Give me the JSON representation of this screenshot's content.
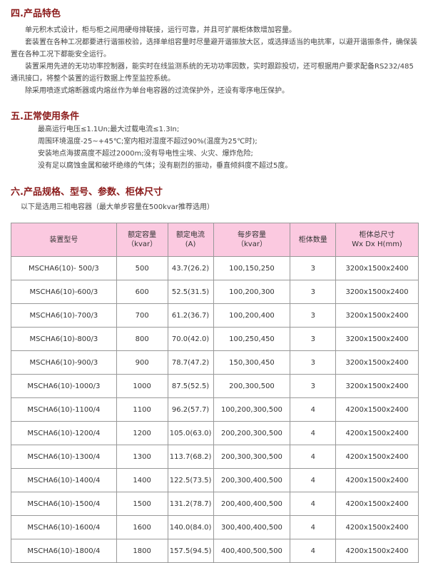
{
  "section4": {
    "title": "四.产品特色",
    "paragraphs": [
      "单元积木式设计，柜与柜之间用硬母排联接，运行可靠，并且可扩展柜体数增加容量。",
      "套装置在各种工况都要进行谐振校验，选择单组容量时尽量避开谐振放大区，或选择适当的电抗率，以避开谐振条件，确保装置在各种工况下都能安全运行。",
      "装置采用先进的无功功率控制器，能实时在线监测系统的无功功率因数，实时跟踪投切，还可根据用户要求配备RS232/485 通讯接口，将整个装置的运行数据上传至监控系统。",
      "除采用喷逐式熔断器或内熔丝作为单台电容器的过流保护外，还设有零序电压保护。"
    ]
  },
  "section5": {
    "title": "五.正常使用条件",
    "lines": [
      "最高运行电压≤1.1Un;最大过载电流≤1.3In;",
      "周围环境温度-25~+45℃;室内相对湿度不超过90%(温度为25℃时);",
      "安装地点海拔高度不超过2000m;没有导电性尘埃、火灾、爆炸危险;",
      "没有足以腐蚀金属和破坏绝缘的气体；没有剧烈的振动，垂直倾斜度不超过5度。"
    ]
  },
  "section6": {
    "title": "六.产品规格、型号、参数、柜体尺寸",
    "note": "以下是选用三相电容器（最大单步容量在500kvar推荐选用）"
  },
  "table": {
    "headers": [
      [
        "装置型号",
        ""
      ],
      [
        "额定容量",
        "（kvar）"
      ],
      [
        "额定电流",
        "(A)"
      ],
      [
        "每步容量",
        "（kvar）"
      ],
      [
        "柜体数量",
        ""
      ],
      [
        "柜体总尺寸",
        "Wx Dx H(mm)"
      ]
    ],
    "header_bg": "#fbc9e0",
    "rows": [
      [
        "MSCHA6(10)- 500/3",
        "500",
        "43.7(26.2)",
        "100,150,250",
        "3",
        "3200x1500x2400"
      ],
      [
        "MSCHA6(10)-600/3",
        "600",
        "52.5(31.5)",
        "100,200,300",
        "3",
        "3200x1500x2400"
      ],
      [
        "MSCHA6(10)-700/3",
        "700",
        "61.2(36.7)",
        "100,200,400",
        "3",
        "3200x1500x2400"
      ],
      [
        "MSCHA6(10)-800/3",
        "800",
        "70.0(42.0)",
        "100,250,450",
        "3",
        "3200x1500x2400"
      ],
      [
        "MSCHA6(10)-900/3",
        "900",
        "78.7(47.2)",
        "150,300,450",
        "3",
        "3200x1500x2400"
      ],
      [
        "MSCHA6(10)-1000/3",
        "1000",
        "87.5(52.5)",
        "200,300,500",
        "3",
        "3200x1500x2400"
      ],
      [
        "MSCHA6(10)-1100/4",
        "1100",
        "96.2(57.7)",
        "100,200,300,500",
        "4",
        "4200x1500x2400"
      ],
      [
        "MSCHA6(10)-1200/4",
        "1200",
        "105.0(63.0)",
        "200,200,300,500",
        "4",
        "4200x1500x2400"
      ],
      [
        "MSCHA6(10)-1300/4",
        "1300",
        "113.7(68.2)",
        "200,300,300,500",
        "4",
        "4200x1500x2400"
      ],
      [
        "MSCHA6(10)-1400/4",
        "1400",
        "122.5(73.5)",
        "200,300,400,500",
        "4",
        "4200x1500x2400"
      ],
      [
        "MSCHA6(10)-1500/4",
        "1500",
        "131.2(78.7)",
        "200,400,400,500",
        "4",
        "4200x1500x2400"
      ],
      [
        "MSCHA6(10)-1600/4",
        "1600",
        "140.0(84.0)",
        "300,400,400,500",
        "4",
        "4200x1500x2400"
      ],
      [
        "MSCHA6(10)-1800/4",
        "1800",
        "157.5(94.5)",
        "400,400,500,500",
        "4",
        "4200x1500x2400"
      ]
    ]
  }
}
